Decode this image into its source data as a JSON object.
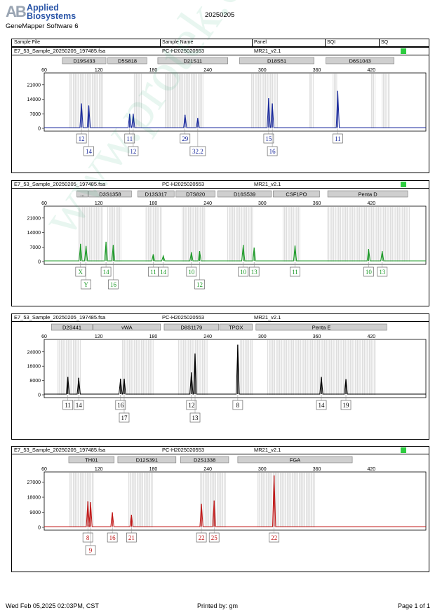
{
  "header": {
    "logo_line1": "Applied",
    "logo_line2": "Biosystems",
    "logo_mark": "AB",
    "software": "GeneMapper Software 6",
    "run_date": "20250205"
  },
  "columns": [
    "Sample File",
    "Sample Name",
    "Panel",
    "SQI",
    "SQ"
  ],
  "footer": {
    "date": "Wed Feb 05,2025 02:03PM, CST",
    "printed_by": "Printed by: gm",
    "page": "Page 1 of 1"
  },
  "watermark": "www.protek.com.cn",
  "panels": [
    {
      "sample_file": "E7_53_Sample_20250205_197485.fsa",
      "sample_name": "PC-H2025020553",
      "panel": "MR21_v2.1",
      "sq_color": "#2ecc40"
    },
    {
      "sample_file": "E7_53_Sample_20250205_197485.fsa",
      "sample_name": "PC-H2025020553",
      "panel": "MR21_v2.1",
      "sq_color": "#2ecc40"
    },
    {
      "sample_file": "E7_53_Sample_20250205_197485.fsa",
      "sample_name": "PC-H2025020553",
      "panel": "MR21_v2.1",
      "sq_color": ""
    },
    {
      "sample_file": "E7_53_Sample_20250205_197485.fsa",
      "sample_name": "PC-H2025020553",
      "panel": "MR21_v2.1",
      "sq_color": "#2ecc40"
    }
  ],
  "chart_data": [
    {
      "type": "line",
      "color": "#1a2a9c",
      "xlim": [
        60,
        480
      ],
      "xticks": [
        60,
        120,
        180,
        240,
        300,
        360,
        420
      ],
      "ylim": [
        0,
        25000
      ],
      "yticks": [
        0,
        7000,
        14000,
        21000
      ],
      "markers": [
        {
          "label": "D19S433",
          "from": 80,
          "to": 128
        },
        {
          "label": "D5S818",
          "from": 130,
          "to": 173
        },
        {
          "label": "D21S11",
          "from": 185,
          "to": 262
        },
        {
          "label": "D18S51",
          "from": 275,
          "to": 357
        },
        {
          "label": "D6S1043",
          "from": 370,
          "to": 445
        }
      ],
      "bins": [
        [
          88,
          125
        ],
        [
          159,
          168
        ],
        [
          193,
          235
        ],
        [
          288,
          317
        ],
        [
          352,
          356
        ],
        [
          378,
          383
        ],
        [
          420,
          425
        ],
        [
          432,
          440
        ]
      ],
      "peaks": [
        {
          "x": 101,
          "h": 12000,
          "label": "12",
          "row": 0
        },
        {
          "x": 109,
          "h": 11000,
          "label": "14",
          "row": 1
        },
        {
          "x": 154,
          "h": 7000,
          "label": "11",
          "row": 0
        },
        {
          "x": 158,
          "h": 7000,
          "label": "12",
          "row": 1
        },
        {
          "x": 215,
          "h": 6500,
          "label": "29",
          "row": 0
        },
        {
          "x": 229,
          "h": 5000,
          "label": "32.2",
          "row": 1
        },
        {
          "x": 307,
          "h": 14500,
          "label": "15",
          "row": 0
        },
        {
          "x": 311,
          "h": 12000,
          "label": "16",
          "row": 1
        },
        {
          "x": 383,
          "h": 18000,
          "label": "11",
          "row": 0
        }
      ]
    },
    {
      "type": "line",
      "color": "#1f9a2a",
      "xlim": [
        60,
        480
      ],
      "xticks": [
        60,
        120,
        180,
        240,
        300,
        360,
        420
      ],
      "ylim": [
        0,
        25000
      ],
      "yticks": [
        0,
        7000,
        14000,
        21000
      ],
      "markers": [
        {
          "label": "...",
          "from": 96,
          "to": 108
        },
        {
          "label": "D3S1358",
          "from": 109,
          "to": 156
        },
        {
          "label": "D13S317",
          "from": 163,
          "to": 203
        },
        {
          "label": "D7S820",
          "from": 205,
          "to": 248
        },
        {
          "label": "D16S539",
          "from": 251,
          "to": 310
        },
        {
          "label": "CSF1PO",
          "from": 312,
          "to": 363
        },
        {
          "label": "Penta D",
          "from": 372,
          "to": 460
        }
      ],
      "bins": [
        [
          98,
          125
        ],
        [
          130,
          145
        ],
        [
          172,
          190
        ],
        [
          212,
          238
        ],
        [
          262,
          290
        ],
        [
          323,
          342
        ],
        [
          372,
          462
        ]
      ],
      "peaks": [
        {
          "x": 100,
          "h": 8500,
          "label": "X",
          "row": 0
        },
        {
          "x": 106,
          "h": 7500,
          "label": "Y",
          "row": 1
        },
        {
          "x": 128,
          "h": 9500,
          "label": "14",
          "row": 0
        },
        {
          "x": 136,
          "h": 8000,
          "label": "16",
          "row": 1
        },
        {
          "x": 180,
          "h": 3500,
          "label": "11",
          "row": 0
        },
        {
          "x": 191,
          "h": 2800,
          "label": "14",
          "row": 0
        },
        {
          "x": 222,
          "h": 4500,
          "label": "10",
          "row": 0
        },
        {
          "x": 231,
          "h": 5000,
          "label": "12",
          "row": 1
        },
        {
          "x": 279,
          "h": 8000,
          "label": "10",
          "row": 0
        },
        {
          "x": 291,
          "h": 6700,
          "label": "13",
          "row": 0
        },
        {
          "x": 336,
          "h": 7700,
          "label": "11",
          "row": 0
        },
        {
          "x": 417,
          "h": 6000,
          "label": "10",
          "row": 0
        },
        {
          "x": 432,
          "h": 5000,
          "label": "13",
          "row": 0
        }
      ]
    },
    {
      "type": "line",
      "color": "#000000",
      "xlim": [
        60,
        480
      ],
      "xticks": [
        60,
        120,
        180,
        240,
        300,
        360,
        420
      ],
      "ylim": [
        0,
        29000
      ],
      "yticks": [
        0,
        8000,
        16000,
        24000
      ],
      "markers": [
        {
          "label": "D2S441",
          "from": 68,
          "to": 113
        },
        {
          "label": "vWA",
          "from": 114,
          "to": 188
        },
        {
          "label": "D8S1179",
          "from": 192,
          "to": 252
        },
        {
          "label": "TPOX",
          "from": 253,
          "to": 289
        },
        {
          "label": "Penta E",
          "from": 293,
          "to": 437
        }
      ],
      "bins": [
        [
          75,
          100
        ],
        [
          146,
          180
        ],
        [
          208,
          240
        ],
        [
          276,
          290
        ],
        [
          306,
          425
        ]
      ],
      "peaks": [
        {
          "x": 86,
          "h": 10000,
          "label": "11",
          "row": 0
        },
        {
          "x": 98,
          "h": 9500,
          "label": "14",
          "row": 0
        },
        {
          "x": 144,
          "h": 9000,
          "label": "16",
          "row": 0
        },
        {
          "x": 148,
          "h": 9000,
          "label": "17",
          "row": 1
        },
        {
          "x": 222,
          "h": 12500,
          "label": "12",
          "row": 0
        },
        {
          "x": 226,
          "h": 23000,
          "label": "13",
          "row": 1
        },
        {
          "x": 273,
          "h": 28000,
          "label": "8",
          "row": 0
        },
        {
          "x": 365,
          "h": 10000,
          "label": "14",
          "row": 0
        },
        {
          "x": 392,
          "h": 8700,
          "label": "19",
          "row": 0
        }
      ]
    },
    {
      "type": "line",
      "color": "#c01818",
      "xlim": [
        60,
        480
      ],
      "xticks": [
        60,
        120,
        180,
        240,
        300,
        360,
        420
      ],
      "ylim": [
        0,
        31000
      ],
      "yticks": [
        0,
        9000,
        18000,
        27000
      ],
      "markers": [
        {
          "label": "TH01",
          "from": 87,
          "to": 137
        },
        {
          "label": "D12S391",
          "from": 141,
          "to": 205
        },
        {
          "label": "D2S1338",
          "from": 210,
          "to": 263
        },
        {
          "label": "FGA",
          "from": 273,
          "to": 399
        }
      ],
      "bins": [
        [
          88,
          115
        ],
        [
          153,
          180
        ],
        [
          232,
          260
        ],
        [
          295,
          358
        ]
      ],
      "peaks": [
        {
          "x": 108,
          "h": 15500,
          "label": "8",
          "row": 0
        },
        {
          "x": 111,
          "h": 15000,
          "label": "9",
          "row": 1
        },
        {
          "x": 135,
          "h": 9000,
          "label": "16",
          "row": 0
        },
        {
          "x": 156,
          "h": 7500,
          "label": "21",
          "row": 0
        },
        {
          "x": 233,
          "h": 14000,
          "label": "22",
          "row": 0
        },
        {
          "x": 247,
          "h": 16000,
          "label": "25",
          "row": 0
        },
        {
          "x": 313,
          "h": 31000,
          "label": "22",
          "row": 0
        }
      ]
    }
  ]
}
